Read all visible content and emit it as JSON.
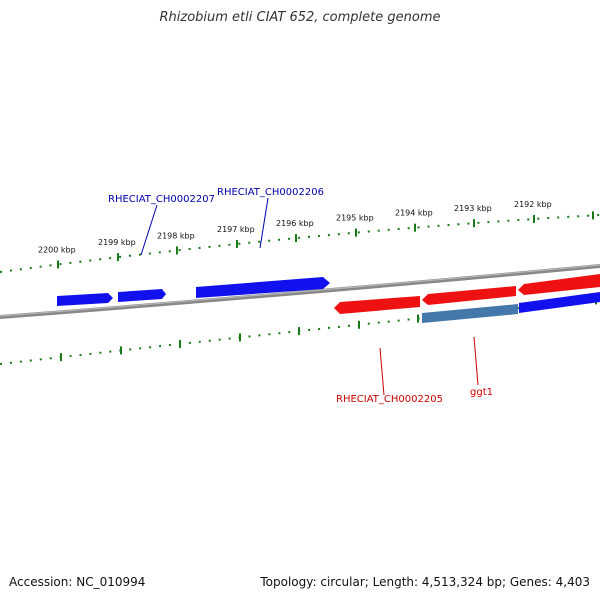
{
  "title": "Rhizobium etli CIAT 652, complete genome",
  "footer": {
    "accession": "Accession: NC_010994",
    "summary": "Topology: circular; Length: 4,513,324 bp; Genes: 4,403"
  },
  "scale": {
    "unit": "kbp",
    "tick_labels": [
      "2200 kbp",
      "2199 kbp",
      "2198 kbp",
      "2197 kbp",
      "2196 kbp",
      "2195 kbp",
      "2194 kbp",
      "2193 kbp",
      "2192 kbp"
    ]
  },
  "genes": [
    {
      "label": "RHECIAT_CH0002207",
      "strand": "forward",
      "color": "#0000cc"
    },
    {
      "label": "RHECIAT_CH0002206",
      "strand": "forward",
      "color": "#0000cc"
    },
    {
      "label": "RHECIAT_CH0002205",
      "strand": "reverse",
      "color": "#cc0000"
    },
    {
      "label": "ggt1",
      "strand": "reverse",
      "color": "#cc0000"
    }
  ],
  "colors": {
    "forward": "#0000ee",
    "reverse": "#ee0000",
    "highlight": "#4477aa",
    "ticks": "#1a7a1a",
    "backbone": "#777777"
  }
}
